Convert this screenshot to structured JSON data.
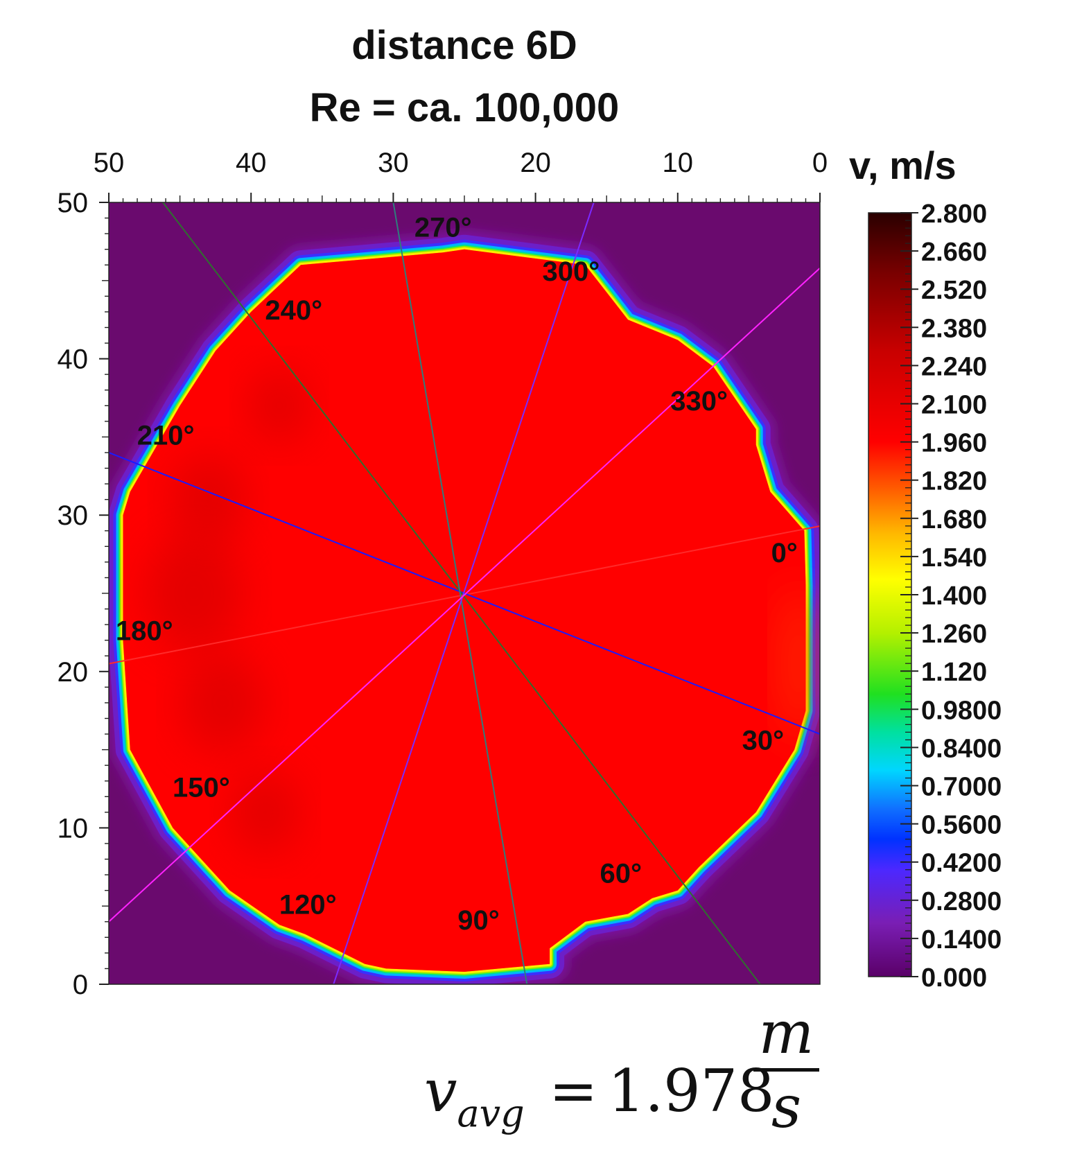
{
  "chart_data": {
    "type": "heatmap",
    "title": "distance 6D",
    "subtitle": "Re = ca. 100,000",
    "x_axis": {
      "ticks": [
        "50",
        "40",
        "30",
        "20",
        "10",
        "0"
      ],
      "range": [
        50,
        0
      ],
      "position": "top"
    },
    "y_axis": {
      "ticks": [
        "50",
        "40",
        "30",
        "20",
        "10",
        "0"
      ],
      "range": [
        0,
        50
      ]
    },
    "colorbar": {
      "title": "v, m/s",
      "range": [
        0,
        2.8
      ],
      "ticks": [
        "2.800",
        "2.660",
        "2.520",
        "2.380",
        "2.240",
        "2.100",
        "1.960",
        "1.820",
        "1.680",
        "1.540",
        "1.400",
        "1.260",
        "1.120",
        "0.9800",
        "0.8400",
        "0.7000",
        "0.5600",
        "0.4200",
        "0.2800",
        "0.1400",
        "0.000"
      ]
    },
    "background_value": 0.0,
    "core_value": 1.978,
    "center": [
      25,
      25
    ],
    "angle_labels": [
      "0°",
      "30°",
      "60°",
      "90°",
      "120°",
      "150°",
      "180°",
      "210°",
      "240°",
      "270°",
      "300°",
      "330°"
    ],
    "boundary_polygon": [
      [
        1.1,
        29
      ],
      [
        1,
        25.5
      ],
      [
        1,
        17.5
      ],
      [
        1.8,
        15
      ],
      [
        4.5,
        11
      ],
      [
        8.5,
        7.5
      ],
      [
        10,
        6
      ],
      [
        11.8,
        5.5
      ],
      [
        13.5,
        4.5
      ],
      [
        16.5,
        4
      ],
      [
        19,
        2.3
      ],
      [
        19,
        1.3
      ],
      [
        25,
        0.8
      ],
      [
        30.5,
        1
      ],
      [
        32,
        1.3
      ],
      [
        36.2,
        3.2
      ],
      [
        38,
        3.8
      ],
      [
        41.5,
        6
      ],
      [
        45.5,
        10
      ],
      [
        48.5,
        15
      ],
      [
        49,
        22
      ],
      [
        49,
        30
      ],
      [
        48.5,
        31.5
      ],
      [
        45,
        37
      ],
      [
        42.5,
        40.5
      ],
      [
        40,
        43
      ],
      [
        36.5,
        46
      ],
      [
        26.5,
        46.8
      ],
      [
        25,
        47
      ],
      [
        16.5,
        46
      ],
      [
        13.5,
        42.5
      ],
      [
        10,
        41.2
      ],
      [
        7.5,
        39.5
      ],
      [
        4.5,
        35.5
      ],
      [
        4.5,
        34.5
      ],
      [
        3.5,
        31.5
      ]
    ],
    "radial_lines": [
      {
        "name": "0-180",
        "color": "#ff2a2a",
        "from": [
          50,
          20.5
        ],
        "to": [
          0,
          29.3
        ]
      },
      {
        "name": "30-210",
        "color": "#1a1aff",
        "from": [
          50,
          34
        ],
        "to": [
          0,
          16
        ]
      },
      {
        "name": "60-240",
        "color": "#2f6f2f",
        "from": [
          46.2,
          50
        ],
        "to": [
          4.2,
          0
        ]
      },
      {
        "name": "90-270",
        "color": "#2e7d7d",
        "from": [
          30,
          50
        ],
        "to": [
          20.6,
          0
        ]
      },
      {
        "name": "120-300",
        "color": "#7a2aff",
        "from": [
          34.2,
          0
        ],
        "to": [
          15.9,
          50
        ]
      },
      {
        "name": "150-330",
        "color": "#ff22ff",
        "from": [
          50,
          4
        ],
        "to": [
          0,
          45.8
        ]
      }
    ]
  },
  "average": {
    "lhs": "v",
    "sub": "avg",
    "eq": "=",
    "value": "1.978",
    "num": "m",
    "den": "s"
  }
}
